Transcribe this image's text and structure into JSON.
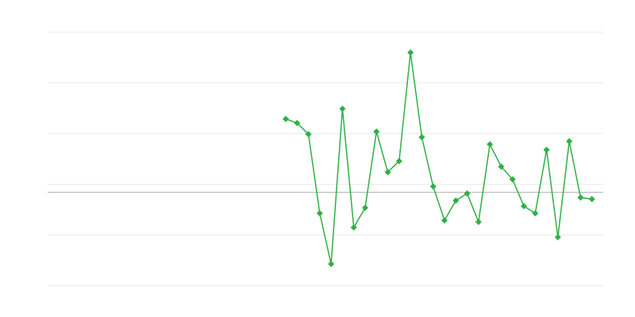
{
  "chart_data": {
    "type": "line",
    "title": "",
    "xlabel": "",
    "ylabel": "",
    "xlim": [
      0,
      49
    ],
    "ylim": [
      0,
      5
    ],
    "grid": true,
    "gridlines_y": [
      0,
      1,
      2,
      3,
      4,
      5
    ],
    "reference_line_y": 1.84,
    "series": [
      {
        "color": "#2eaf46",
        "marker": "diamond",
        "x": [
          21,
          22,
          23,
          24,
          25,
          26,
          27,
          28,
          29,
          30,
          31,
          32,
          33,
          34,
          35,
          36,
          37,
          38,
          39,
          40,
          41,
          42,
          43,
          44,
          45,
          46,
          47,
          48
        ],
        "y": [
          3.28,
          3.2,
          2.98,
          1.42,
          0.42,
          3.48,
          1.14,
          1.53,
          3.03,
          2.23,
          2.45,
          4.59,
          2.92,
          1.95,
          1.28,
          1.67,
          1.81,
          1.25,
          2.78,
          2.34,
          2.09,
          1.56,
          1.42,
          2.67,
          0.95,
          2.84,
          1.73,
          1.7
        ]
      }
    ],
    "colors": {
      "grid": "#ebebeb",
      "reference": "#aaaaaa"
    }
  }
}
